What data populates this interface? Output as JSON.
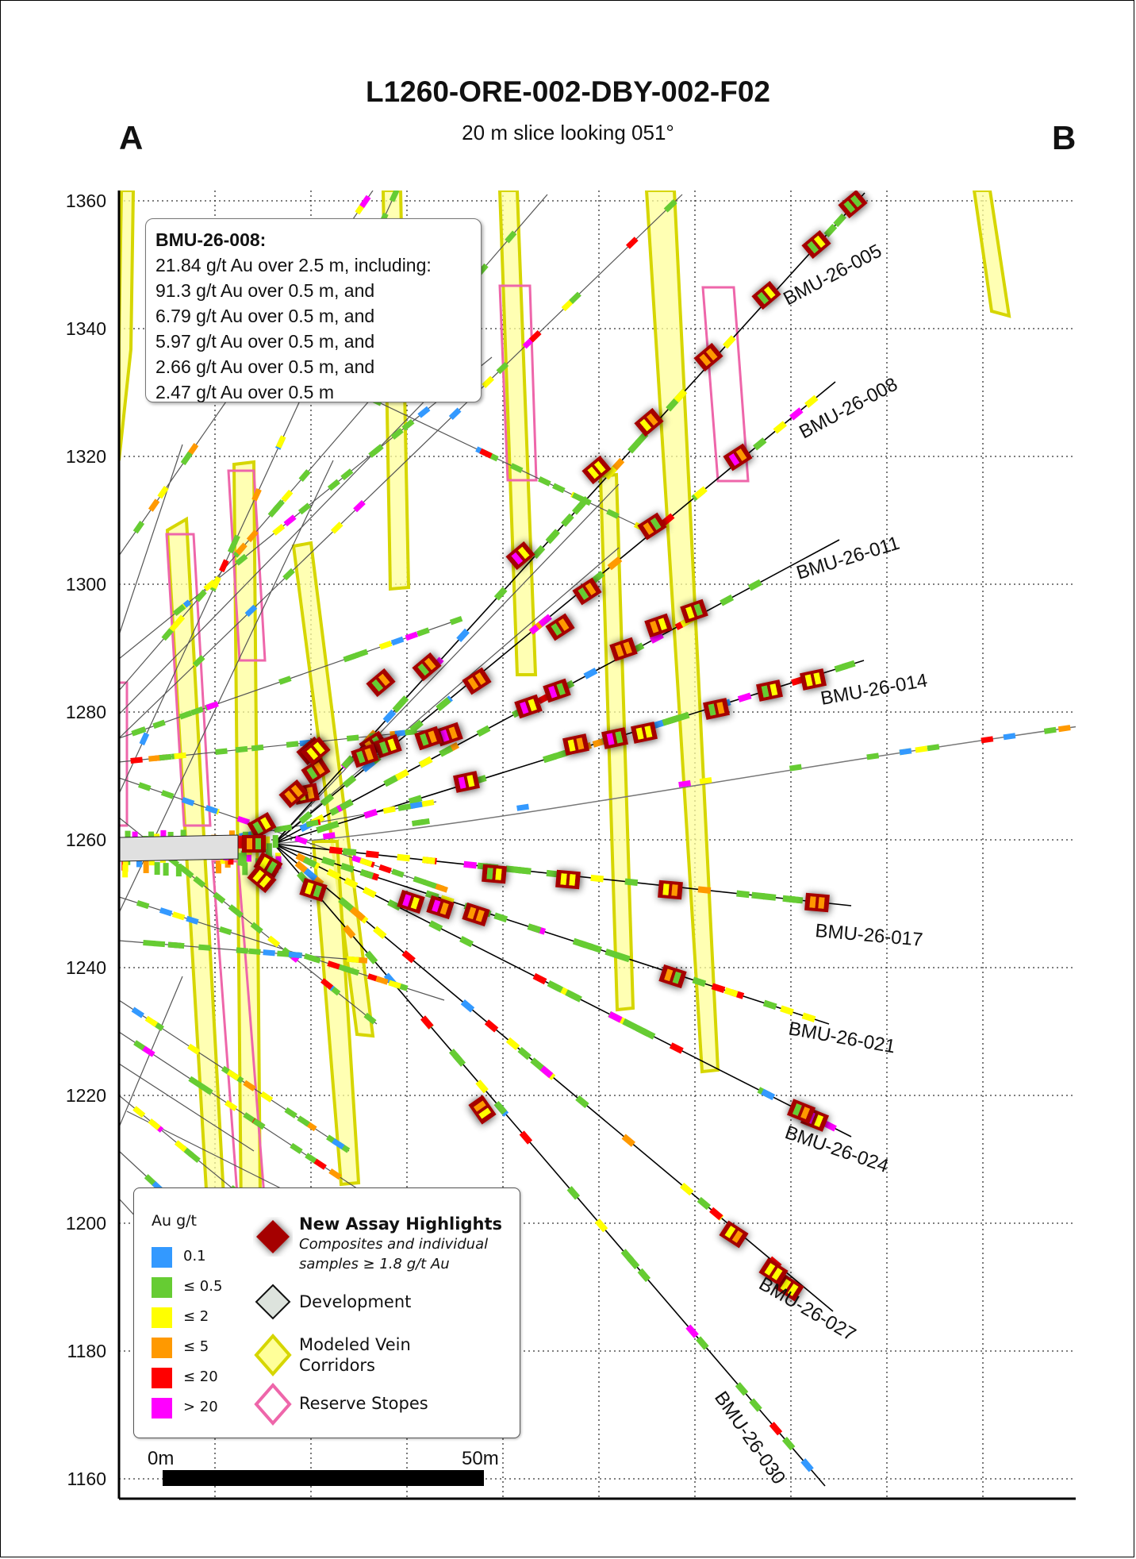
{
  "title": "L1260-ORE-002-DBY-002-F02",
  "subtitle": "20 m slice looking 051°",
  "section_ends": {
    "left": "A",
    "right": "B"
  },
  "y_axis": {
    "ticks": [
      "1360",
      "1340",
      "1320",
      "1300",
      "1280",
      "1260",
      "1240",
      "1220",
      "1200",
      "1180",
      "1160"
    ]
  },
  "callout": {
    "hole": "BMU-26-008:",
    "lines": [
      "21.84 g/t Au over 2.5 m, including:",
      "91.3 g/t Au over 0.5 m, and",
      "6.79 g/t Au over 0.5 m, and",
      "5.97 g/t Au over 0.5 m, and",
      "2.66 g/t Au over 0.5 m, and",
      "2.47 g/t Au over 0.5 m"
    ]
  },
  "holes": [
    {
      "label": "BMU-26-005",
      "angle": -28
    },
    {
      "label": "BMU-26-008",
      "angle": -28
    },
    {
      "label": "BMU-26-011",
      "angle": -17
    },
    {
      "label": "BMU-26-014",
      "angle": -10
    },
    {
      "label": "BMU-26-017",
      "angle": 5
    },
    {
      "label": "BMU-26-021",
      "angle": 10
    },
    {
      "label": "BMU-26-024",
      "angle": 19
    },
    {
      "label": "BMU-26-027",
      "angle": 30
    },
    {
      "label": "BMU-26-030",
      "angle": 55
    }
  ],
  "legend": {
    "au_title": "Au g/t",
    "au_classes": [
      {
        "label": "0.1",
        "color": "#3399ff"
      },
      {
        "label": "≤ 0.5",
        "color": "#66cc33"
      },
      {
        "label": "≤ 2",
        "color": "#ffff00"
      },
      {
        "label": "≤ 5",
        "color": "#ff9900"
      },
      {
        "label": "≤ 20",
        "color": "#ff0000"
      },
      {
        "label": "> 20",
        "color": "#ff00ff"
      }
    ],
    "highlight_title": "New Assay Highlights",
    "highlight_desc_1": "Composites and individual",
    "highlight_desc_2": "samples ≥ 1.8 g/t Au",
    "development": "Development",
    "vein_1": "Modeled Vein",
    "vein_2": "Corridors",
    "stopes": "Reserve Stopes"
  },
  "scale": {
    "start": "0m",
    "end": "50m"
  },
  "colors": {
    "highlight": "#a50000",
    "vein_fill": "#ffff99",
    "vein_edge": "#d6d600",
    "stope": "#ee66aa"
  }
}
